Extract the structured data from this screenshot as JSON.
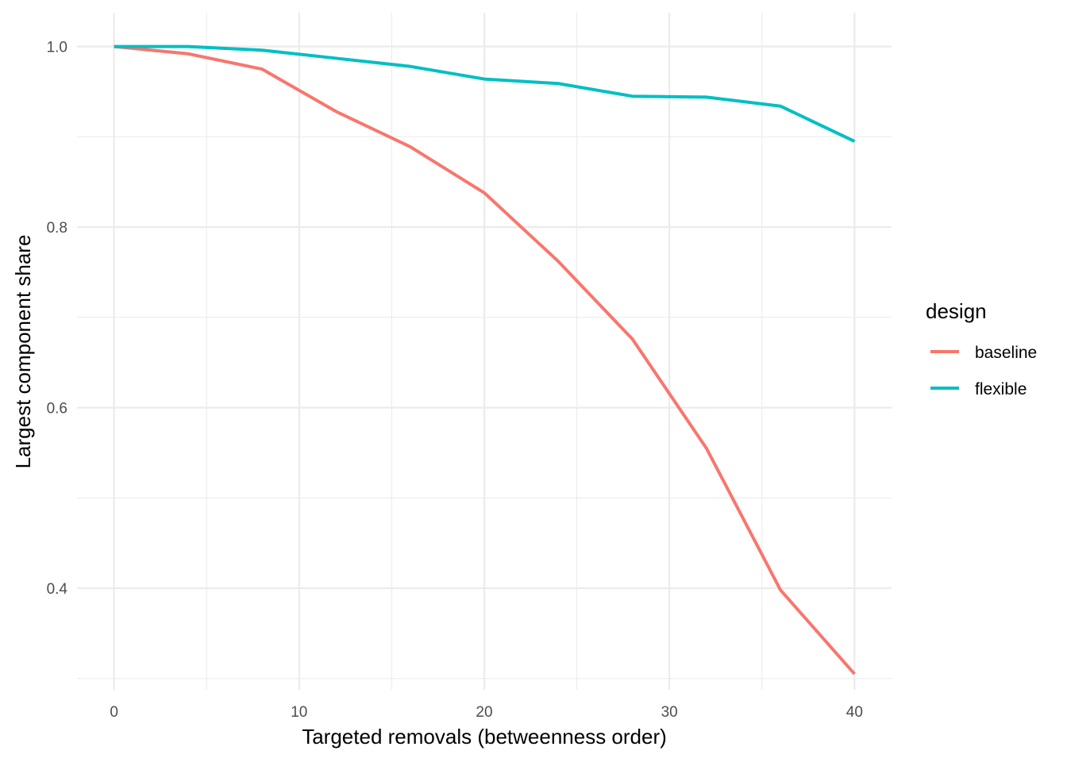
{
  "chart_data": {
    "type": "line",
    "xlabel": "Targeted removals (betweenness order)",
    "ylabel": "Largest component share",
    "xlim": [
      -2,
      42
    ],
    "ylim": [
      0.2875,
      1.0375
    ],
    "x_ticks": [
      0,
      10,
      20,
      30,
      40
    ],
    "y_ticks": [
      0.4,
      0.6,
      0.8,
      1.0
    ],
    "x_tick_labels": [
      "0",
      "10",
      "20",
      "30",
      "40"
    ],
    "y_tick_labels": [
      "0.4",
      "0.6",
      "0.8",
      "1.0"
    ],
    "grid": true,
    "legend": {
      "title": "design",
      "position": "right"
    },
    "x": [
      0,
      4,
      8,
      12,
      16,
      20,
      24,
      28,
      32,
      36,
      40
    ],
    "series": [
      {
        "name": "baseline",
        "color": "#F8766D",
        "values": [
          1.0,
          0.992,
          0.975,
          0.928,
          0.889,
          0.838,
          0.762,
          0.676,
          0.555,
          0.398,
          0.305
        ]
      },
      {
        "name": "flexible",
        "color": "#00BFC4",
        "values": [
          1.0,
          1.0,
          0.996,
          0.987,
          0.978,
          0.964,
          0.959,
          0.945,
          0.944,
          0.934,
          0.895
        ]
      }
    ]
  }
}
